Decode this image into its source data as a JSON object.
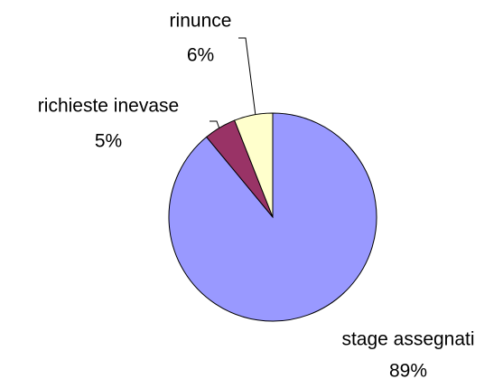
{
  "chart_data": {
    "type": "pie",
    "categories": [
      "stage assegnati",
      "richieste inevase",
      "rinunce"
    ],
    "values": [
      89,
      5,
      6
    ],
    "value_labels": [
      "89%",
      "5%",
      "6%"
    ],
    "colors": [
      "#9999ff",
      "#993366",
      "#ffffcc"
    ]
  }
}
